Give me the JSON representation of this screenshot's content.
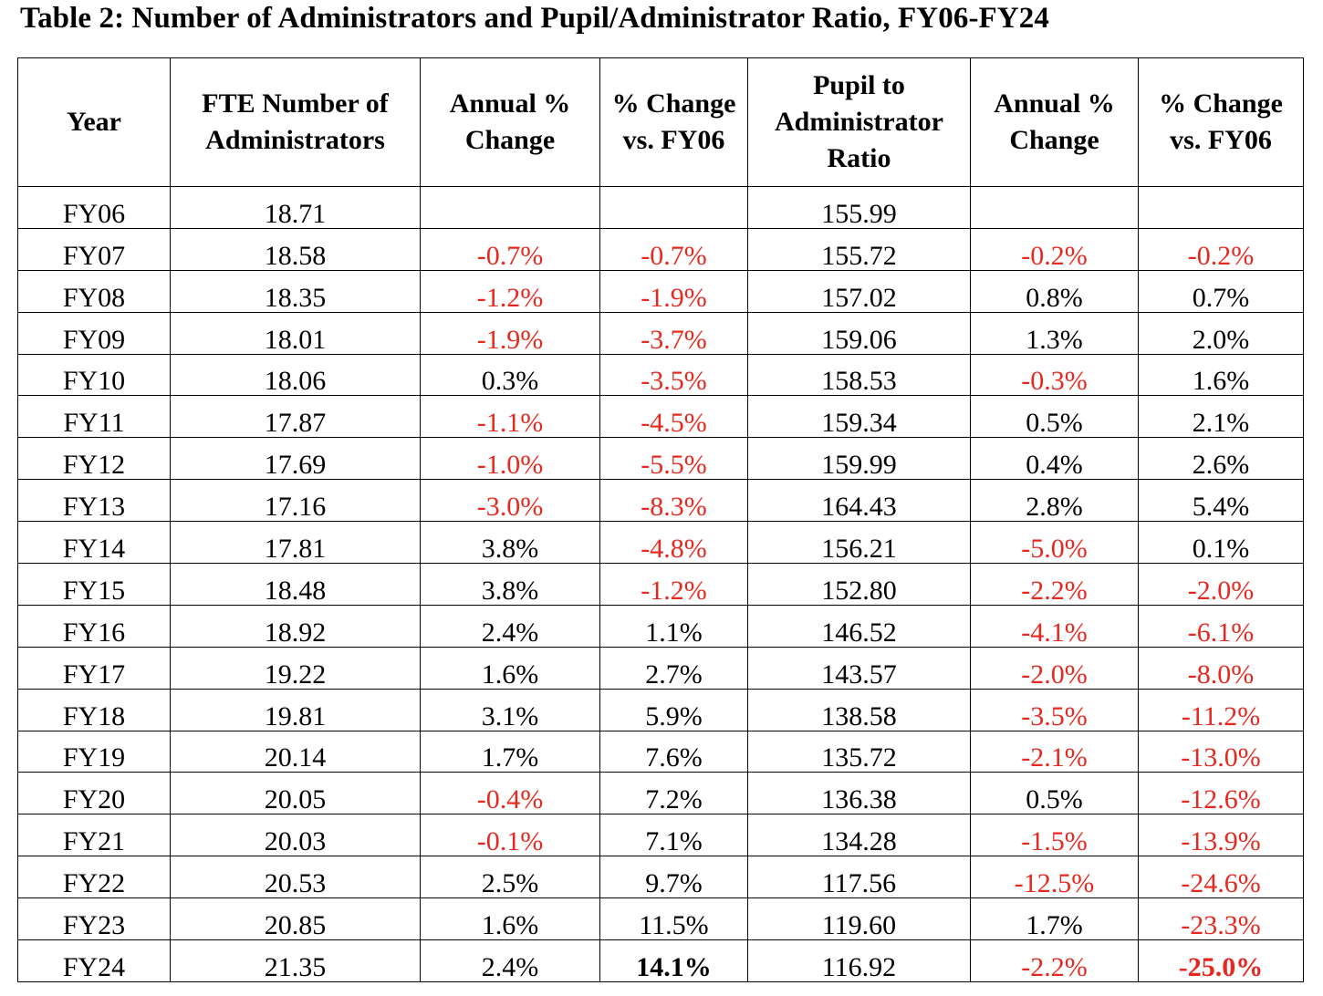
{
  "title": "Table 2: Number of Administrators and Pupil/Administrator Ratio, FY06-FY24",
  "colors": {
    "negative": "#e8281e",
    "text": "#000000"
  },
  "headers": [
    "Year",
    "FTE Number of Administrators",
    "Annual % Change",
    "% Change vs. FY06",
    "Pupil to Administrator Ratio",
    "Annual % Change",
    "% Change vs. FY06"
  ],
  "rows": [
    [
      "FY06",
      "18.71",
      "",
      "",
      "155.99",
      "",
      ""
    ],
    [
      "FY07",
      "18.58",
      "-0.7%",
      "-0.7%",
      "155.72",
      "-0.2%",
      "-0.2%"
    ],
    [
      "FY08",
      "18.35",
      "-1.2%",
      "-1.9%",
      "157.02",
      "0.8%",
      "0.7%"
    ],
    [
      "FY09",
      "18.01",
      "-1.9%",
      "-3.7%",
      "159.06",
      "1.3%",
      "2.0%"
    ],
    [
      "FY10",
      "18.06",
      "0.3%",
      "-3.5%",
      "158.53",
      "-0.3%",
      "1.6%"
    ],
    [
      "FY11",
      "17.87",
      "-1.1%",
      "-4.5%",
      "159.34",
      "0.5%",
      "2.1%"
    ],
    [
      "FY12",
      "17.69",
      "-1.0%",
      "-5.5%",
      "159.99",
      "0.4%",
      "2.6%"
    ],
    [
      "FY13",
      "17.16",
      "-3.0%",
      "-8.3%",
      "164.43",
      "2.8%",
      "5.4%"
    ],
    [
      "FY14",
      "17.81",
      "3.8%",
      "-4.8%",
      "156.21",
      "-5.0%",
      "0.1%"
    ],
    [
      "FY15",
      "18.48",
      "3.8%",
      "-1.2%",
      "152.80",
      "-2.2%",
      "-2.0%"
    ],
    [
      "FY16",
      "18.92",
      "2.4%",
      "1.1%",
      "146.52",
      "-4.1%",
      "-6.1%"
    ],
    [
      "FY17",
      "19.22",
      "1.6%",
      "2.7%",
      "143.57",
      "-2.0%",
      "-8.0%"
    ],
    [
      "FY18",
      "19.81",
      "3.1%",
      "5.9%",
      "138.58",
      "-3.5%",
      "-11.2%"
    ],
    [
      "FY19",
      "20.14",
      "1.7%",
      "7.6%",
      "135.72",
      "-2.1%",
      "-13.0%"
    ],
    [
      "FY20",
      "20.05",
      "-0.4%",
      "7.2%",
      "136.38",
      "0.5%",
      "-12.6%"
    ],
    [
      "FY21",
      "20.03",
      "-0.1%",
      "7.1%",
      "134.28",
      "-1.5%",
      "-13.9%"
    ],
    [
      "FY22",
      "20.53",
      "2.5%",
      "9.7%",
      "117.56",
      "-12.5%",
      "-24.6%"
    ],
    [
      "FY23",
      "20.85",
      "1.6%",
      "11.5%",
      "119.60",
      "1.7%",
      "-23.3%"
    ],
    [
      "FY24",
      "21.35",
      "2.4%",
      "14.1%",
      "116.92",
      "-2.2%",
      "-25.0%"
    ]
  ],
  "emphasized_cells": [
    [
      18,
      3
    ],
    [
      18,
      6
    ]
  ]
}
